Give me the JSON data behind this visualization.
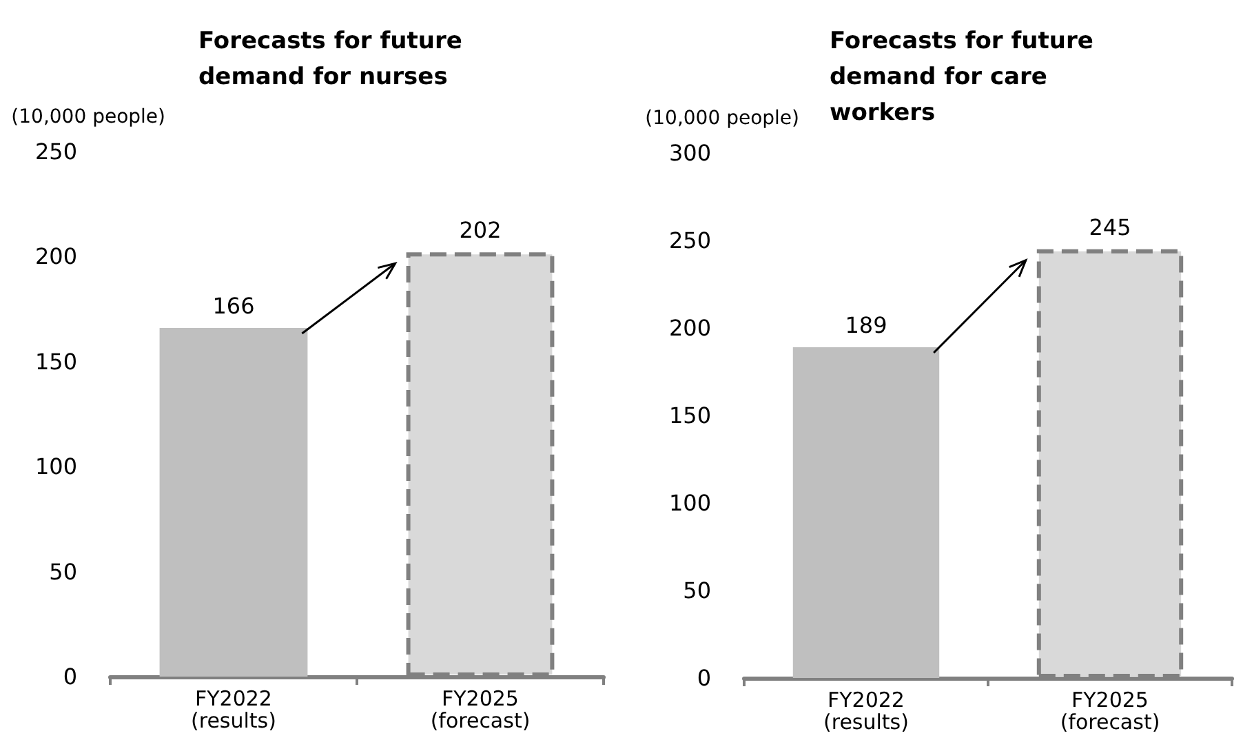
{
  "chart_data": [
    {
      "type": "bar",
      "title": "Forecasts for future demand for nurses",
      "ylabel": "(10,000 people)",
      "categories": [
        "FY2022\n(results)",
        "FY2025\n(forecast)"
      ],
      "values": [
        166,
        202
      ],
      "colors": [
        "#bfbfbf",
        "#d9d9d9"
      ],
      "ylim": [
        0,
        250
      ],
      "yticks": [
        0,
        50,
        100,
        150,
        200,
        250
      ],
      "grid": false,
      "data_labels": true
    },
    {
      "type": "bar",
      "title": "Forecasts for future demand for care workers",
      "ylabel": "(10,000 people)",
      "categories": [
        "FY2022\n(results)",
        "FY2025\n(forecast)"
      ],
      "values": [
        189,
        245
      ],
      "colors": [
        "#bfbfbf",
        "#d9d9d9"
      ],
      "ylim": [
        0,
        300
      ],
      "yticks": [
        0,
        50,
        100,
        150,
        200,
        250,
        300
      ],
      "grid": false,
      "data_labels": true
    }
  ]
}
